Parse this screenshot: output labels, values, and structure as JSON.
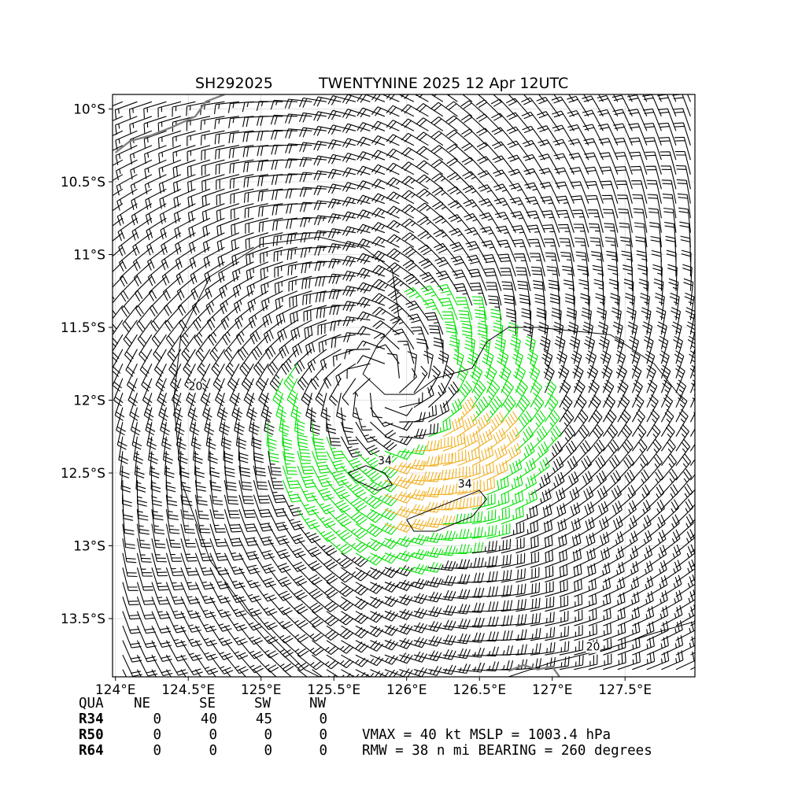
{
  "header": {
    "storm_id": "SH292025",
    "storm_name_time": "TWENTYNINE 2025 12 Apr 12UTC"
  },
  "map": {
    "extent": {
      "lon": [
        123.98,
        127.98
      ],
      "lat": [
        -13.9,
        -9.9
      ]
    },
    "lat_ticks": [
      {
        "value": -10.0,
        "label": "10°S"
      },
      {
        "value": -10.5,
        "label": "10.5°S"
      },
      {
        "value": -11.0,
        "label": "11°S"
      },
      {
        "value": -11.5,
        "label": "11.5°S"
      },
      {
        "value": -12.0,
        "label": "12°S"
      },
      {
        "value": -12.5,
        "label": "12.5°S"
      },
      {
        "value": -13.0,
        "label": "13°S"
      },
      {
        "value": -13.5,
        "label": "13.5°S"
      }
    ],
    "lon_ticks": [
      {
        "value": 124.0,
        "label": "124°E"
      },
      {
        "value": 124.5,
        "label": "124.5°E"
      },
      {
        "value": 125.0,
        "label": "125°E"
      },
      {
        "value": 125.5,
        "label": "125.5°E"
      },
      {
        "value": 126.0,
        "label": "126°E"
      },
      {
        "value": 126.5,
        "label": "126.5°E"
      },
      {
        "value": 127.0,
        "label": "127°E"
      },
      {
        "value": 127.5,
        "label": "127.5°E"
      }
    ],
    "storm_center": {
      "lon": 125.85,
      "lat": -11.9
    },
    "wind_field": {
      "grid_spacing_deg": 0.1,
      "rmw_nmi": 38,
      "vmax_kt": 40,
      "colors": {
        "below_34kt": "#000000",
        "34_to_50kt": "#00e000",
        "above_34_contour": "#f0b020"
      }
    },
    "contours": [
      {
        "label": "20",
        "label_lon": 124.55,
        "label_lat": -11.93
      },
      {
        "label": "34",
        "label_lon": 125.85,
        "label_lat": -12.44
      },
      {
        "label": "34",
        "label_lon": 126.4,
        "label_lat": -12.6
      },
      {
        "label": "20",
        "label_lon": 127.28,
        "label_lat": -13.72
      }
    ],
    "coastline_color": "#808080"
  },
  "radii_table": {
    "header": [
      "QUA",
      "NE",
      "SE",
      "SW",
      "NW"
    ],
    "rows": [
      {
        "label": "R34",
        "values": [
          "0",
          "40",
          "45",
          "0"
        ]
      },
      {
        "label": "R50",
        "values": [
          "0",
          "0",
          "0",
          "0"
        ]
      },
      {
        "label": "R64",
        "values": [
          "0",
          "0",
          "0",
          "0"
        ]
      }
    ]
  },
  "summary": {
    "line1": "VMAX =  40 kt MSLP = 1003.4 hPa",
    "line2": "RMW =  38 n mi BEARING = 260 degrees"
  }
}
